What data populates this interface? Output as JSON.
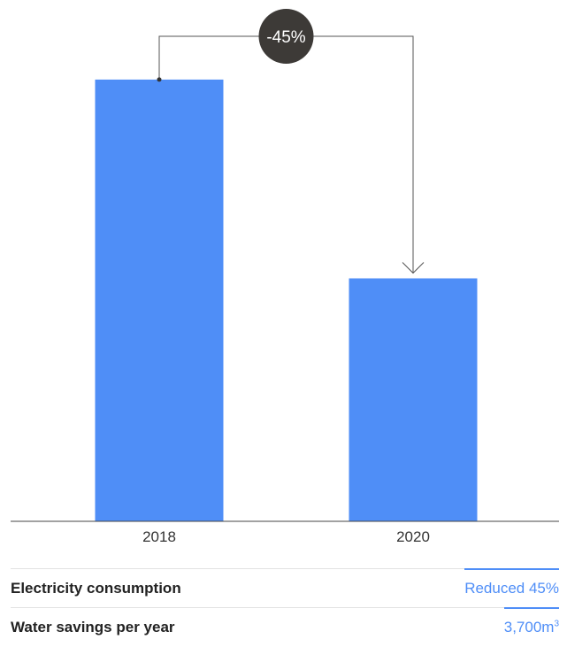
{
  "chart_data": {
    "type": "bar",
    "categories": [
      "2018",
      "2020"
    ],
    "values": [
      100,
      55
    ],
    "ylim": [
      0,
      110
    ],
    "annotation": {
      "text": "-45%",
      "from": "2018",
      "to": "2020"
    },
    "grid": false,
    "colors": {
      "bar": "#4f8ef7",
      "badge": "#3d3a37",
      "axis": "#444444",
      "connector": "#555555"
    }
  },
  "stats": [
    {
      "label": "Electricity consumption",
      "value": "Reduced 45%",
      "sup": ""
    },
    {
      "label": "Water savings per year",
      "value": "3,700m",
      "sup": "3"
    }
  ]
}
